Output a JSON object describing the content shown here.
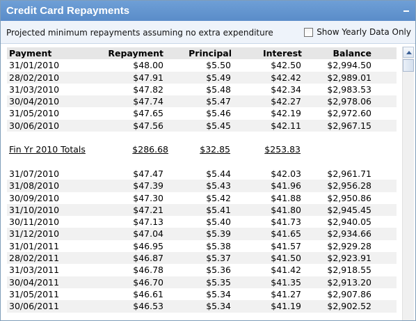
{
  "window": {
    "title": "Credit Card Repayments"
  },
  "subbar": {
    "description": "Projected minimum repayments assuming no extra expenditure",
    "checkbox_label": "Show Yearly Data Only"
  },
  "table": {
    "headers": {
      "payment": "Payment",
      "repayment": "Repayment",
      "principal": "Principal",
      "interest": "Interest",
      "balance": "Balance"
    },
    "rows": [
      {
        "type": "data",
        "payment": "31/01/2010",
        "repayment": "$48.00",
        "principal": "$5.50",
        "interest": "$42.50",
        "balance": "$2,994.50"
      },
      {
        "type": "data",
        "payment": "28/02/2010",
        "repayment": "$47.91",
        "principal": "$5.49",
        "interest": "$42.42",
        "balance": "$2,989.01"
      },
      {
        "type": "data",
        "payment": "31/03/2010",
        "repayment": "$47.82",
        "principal": "$5.48",
        "interest": "$42.34",
        "balance": "$2,983.53"
      },
      {
        "type": "data",
        "payment": "30/04/2010",
        "repayment": "$47.74",
        "principal": "$5.47",
        "interest": "$42.27",
        "balance": "$2,978.06"
      },
      {
        "type": "data",
        "payment": "31/05/2010",
        "repayment": "$47.65",
        "principal": "$5.46",
        "interest": "$42.19",
        "balance": "$2,972.60"
      },
      {
        "type": "data",
        "payment": "30/06/2010",
        "repayment": "$47.56",
        "principal": "$5.45",
        "interest": "$42.11",
        "balance": "$2,967.15"
      },
      {
        "type": "blank"
      },
      {
        "type": "total",
        "payment": "Fin Yr 2010 Totals",
        "repayment": "$286.68",
        "principal": "$32.85",
        "interest": "$253.83",
        "balance": ""
      },
      {
        "type": "blank"
      },
      {
        "type": "data",
        "payment": "31/07/2010",
        "repayment": "$47.47",
        "principal": "$5.44",
        "interest": "$42.03",
        "balance": "$2,961.71"
      },
      {
        "type": "data",
        "payment": "31/08/2010",
        "repayment": "$47.39",
        "principal": "$5.43",
        "interest": "$41.96",
        "balance": "$2,956.28"
      },
      {
        "type": "data",
        "payment": "30/09/2010",
        "repayment": "$47.30",
        "principal": "$5.42",
        "interest": "$41.88",
        "balance": "$2,950.86"
      },
      {
        "type": "data",
        "payment": "31/10/2010",
        "repayment": "$47.21",
        "principal": "$5.41",
        "interest": "$41.80",
        "balance": "$2,945.45"
      },
      {
        "type": "data",
        "payment": "30/11/2010",
        "repayment": "$47.13",
        "principal": "$5.40",
        "interest": "$41.73",
        "balance": "$2,940.05"
      },
      {
        "type": "data",
        "payment": "31/12/2010",
        "repayment": "$47.04",
        "principal": "$5.39",
        "interest": "$41.65",
        "balance": "$2,934.66"
      },
      {
        "type": "data",
        "payment": "31/01/2011",
        "repayment": "$46.95",
        "principal": "$5.38",
        "interest": "$41.57",
        "balance": "$2,929.28"
      },
      {
        "type": "data",
        "payment": "28/02/2011",
        "repayment": "$46.87",
        "principal": "$5.37",
        "interest": "$41.50",
        "balance": "$2,923.91"
      },
      {
        "type": "data",
        "payment": "31/03/2011",
        "repayment": "$46.78",
        "principal": "$5.36",
        "interest": "$41.42",
        "balance": "$2,918.55"
      },
      {
        "type": "data",
        "payment": "30/04/2011",
        "repayment": "$46.70",
        "principal": "$5.35",
        "interest": "$41.35",
        "balance": "$2,913.20"
      },
      {
        "type": "data",
        "payment": "31/05/2011",
        "repayment": "$46.61",
        "principal": "$5.34",
        "interest": "$41.27",
        "balance": "$2,907.86"
      },
      {
        "type": "data",
        "payment": "30/06/2011",
        "repayment": "$46.53",
        "principal": "$5.34",
        "interest": "$41.19",
        "balance": "$2,902.52"
      }
    ]
  },
  "colors": {
    "titlebar": "#5a8cc9",
    "subbar": "#eef3fa",
    "header_row": "#e6e6e6",
    "alt_row": "#f1f1f1"
  }
}
